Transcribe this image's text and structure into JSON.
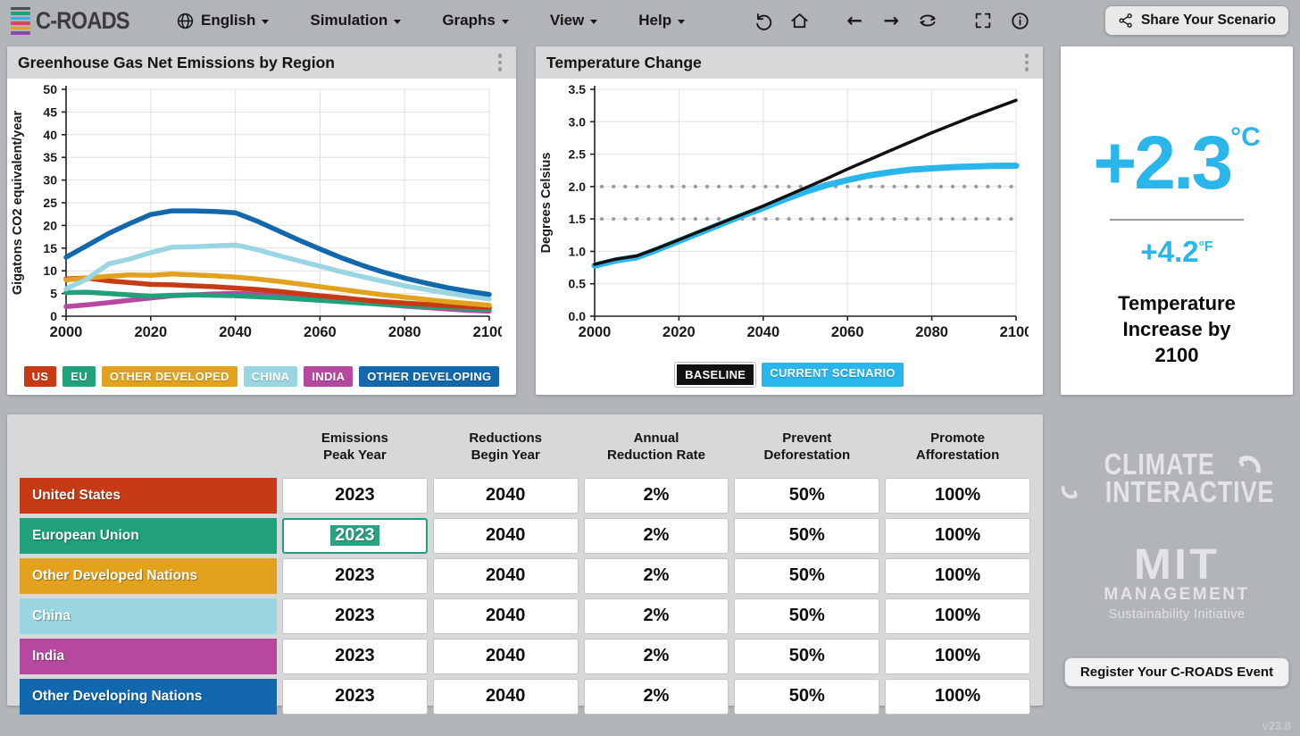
{
  "topbar": {
    "logo_text": "C-ROADS",
    "logo_stripe_colors": [
      "#4d4d4f",
      "#21a07c",
      "#2ab6ea",
      "#d8416f",
      "#e2a21d",
      "#8a4a9e"
    ],
    "menus": [
      {
        "label": "English",
        "icon": "globe-icon"
      },
      {
        "label": "Simulation"
      },
      {
        "label": "Graphs"
      },
      {
        "label": "View"
      },
      {
        "label": "Help"
      }
    ],
    "nav_icon_names": [
      "undo-icon",
      "home-icon",
      "back-arrow-icon",
      "forward-arrow-icon",
      "cycle-icon",
      "fullscreen-icon",
      "info-icon"
    ],
    "back_glyph": "←",
    "forward_glyph": "→",
    "share_label": "Share Your Scenario"
  },
  "chart_data": [
    {
      "id": "emissions",
      "type": "line",
      "title": "Greenhouse Gas Net Emissions by Region",
      "ylabel": "Gigatons CO2 equivalent/year",
      "xlabel": "",
      "xlim": [
        2000,
        2100
      ],
      "ylim": [
        0,
        50
      ],
      "xtick": 20,
      "ytick": 5,
      "ydec": 0,
      "grid": true,
      "legend_position": "bottom",
      "x": [
        2000,
        2005,
        2010,
        2015,
        2020,
        2025,
        2030,
        2035,
        2040,
        2045,
        2050,
        2055,
        2060,
        2065,
        2070,
        2075,
        2080,
        2085,
        2090,
        2095,
        2100
      ],
      "series": [
        {
          "name": "INDIA",
          "color": "#b5489f",
          "values": [
            2.1,
            2.5,
            3.0,
            3.5,
            4.0,
            4.5,
            4.7,
            4.9,
            5.0,
            4.9,
            4.6,
            4.2,
            3.8,
            3.4,
            3.0,
            2.6,
            2.2,
            1.9,
            1.6,
            1.3,
            1.1
          ]
        },
        {
          "name": "EU",
          "color": "#21a07c",
          "values": [
            5.2,
            5.3,
            5.0,
            4.7,
            4.4,
            4.6,
            4.7,
            4.6,
            4.5,
            4.3,
            4.1,
            3.8,
            3.5,
            3.2,
            2.9,
            2.6,
            2.3,
            2.1,
            1.9,
            1.7,
            1.5
          ]
        },
        {
          "name": "US",
          "color": "#c63b16",
          "values": [
            8.2,
            8.4,
            7.8,
            7.4,
            7.0,
            6.9,
            6.7,
            6.5,
            6.2,
            5.9,
            5.5,
            5.0,
            4.5,
            4.1,
            3.6,
            3.2,
            2.9,
            2.6,
            2.3,
            2.1,
            1.9
          ]
        },
        {
          "name": "OTHER DEVELOPED",
          "color": "#e2a21d",
          "values": [
            8.0,
            8.4,
            8.8,
            9.1,
            9.0,
            9.3,
            9.1,
            8.9,
            8.6,
            8.2,
            7.7,
            7.1,
            6.5,
            5.9,
            5.3,
            4.7,
            4.2,
            3.7,
            3.2,
            2.8,
            2.4
          ]
        },
        {
          "name": "CHINA",
          "color": "#99d6e1",
          "values": [
            6.0,
            8.2,
            11.5,
            12.6,
            14.0,
            15.2,
            15.3,
            15.5,
            15.7,
            14.7,
            13.4,
            12.2,
            11.0,
            9.8,
            8.7,
            7.7,
            6.7,
            5.9,
            5.1,
            4.4,
            3.8
          ]
        },
        {
          "name": "OTHER DEVELOPING",
          "color": "#1368ad",
          "values": [
            13.0,
            15.6,
            18.2,
            20.4,
            22.4,
            23.2,
            23.2,
            23.1,
            22.8,
            21.0,
            18.9,
            16.8,
            14.8,
            12.9,
            11.2,
            9.7,
            8.4,
            7.3,
            6.3,
            5.5,
            4.8
          ]
        }
      ],
      "legend": [
        {
          "label": "US",
          "color": "#c63b16"
        },
        {
          "label": "EU",
          "color": "#21a07c"
        },
        {
          "label": "OTHER DEVELOPED",
          "color": "#e2a21d"
        },
        {
          "label": "CHINA",
          "color": "#99d6e1"
        },
        {
          "label": "INDIA",
          "color": "#b5489f"
        },
        {
          "label": "OTHER DEVELOPING",
          "color": "#1368ad"
        }
      ]
    },
    {
      "id": "temperature",
      "type": "line",
      "title": "Temperature Change",
      "ylabel": "Degrees Celsius",
      "xlabel": "",
      "xlim": [
        2000,
        2100
      ],
      "ylim": [
        0,
        3.5
      ],
      "xtick": 20,
      "ytick": 0.5,
      "ydec": 1,
      "grid": true,
      "ref_lines": [
        1.5,
        2.0
      ],
      "legend_position": "bottom",
      "x": [
        2000,
        2005,
        2010,
        2015,
        2020,
        2025,
        2030,
        2035,
        2040,
        2045,
        2050,
        2055,
        2060,
        2065,
        2070,
        2075,
        2080,
        2085,
        2090,
        2095,
        2100
      ],
      "series": [
        {
          "name": "CURRENT SCENARIO",
          "color": "#2ab6ea",
          "width": 7,
          "values": [
            0.78,
            0.86,
            0.91,
            1.03,
            1.16,
            1.29,
            1.42,
            1.55,
            1.67,
            1.8,
            1.92,
            2.02,
            2.1,
            2.17,
            2.22,
            2.26,
            2.28,
            2.3,
            2.31,
            2.32,
            2.32
          ]
        },
        {
          "name": "BASELINE",
          "color": "#111111",
          "width": 3.5,
          "values": [
            0.8,
            0.88,
            0.93,
            1.05,
            1.18,
            1.31,
            1.44,
            1.57,
            1.7,
            1.84,
            1.98,
            2.12,
            2.27,
            2.41,
            2.55,
            2.69,
            2.83,
            2.96,
            3.09,
            3.21,
            3.33
          ]
        }
      ],
      "legend": [
        {
          "label": "BASELINE",
          "color": "#111111",
          "bordered": true
        },
        {
          "label": "CURRENT SCENARIO",
          "color": "#2ab6ea"
        }
      ]
    }
  ],
  "summary": {
    "celsius_value": "+2.3",
    "celsius_unit": "°C",
    "fahrenheit_value": "+4.2",
    "fahrenheit_unit": "°F",
    "caption_lines": [
      "Temperature",
      "Increase by",
      "2100"
    ]
  },
  "table": {
    "headers": [
      [
        "Emissions",
        "Peak Year"
      ],
      [
        "Reductions",
        "Begin Year"
      ],
      [
        "Annual",
        "Reduction Rate"
      ],
      [
        "Prevent",
        "Deforestation"
      ],
      [
        "Promote",
        "Afforestation"
      ]
    ],
    "rows": [
      {
        "region": "United States",
        "color": "#c63b16",
        "values": [
          "2023",
          "2040",
          "2%",
          "50%",
          "100%"
        ]
      },
      {
        "region": "European Union",
        "color": "#21a07c",
        "values": [
          "2023",
          "2040",
          "2%",
          "50%",
          "100%"
        ]
      },
      {
        "region": "Other Developed Nations",
        "color": "#e2a21d",
        "values": [
          "2023",
          "2040",
          "2%",
          "50%",
          "100%"
        ]
      },
      {
        "region": "China",
        "color": "#99d6e1",
        "values": [
          "2023",
          "2040",
          "2%",
          "50%",
          "100%"
        ]
      },
      {
        "region": "India",
        "color": "#b5489f",
        "values": [
          "2023",
          "2040",
          "2%",
          "50%",
          "100%"
        ]
      },
      {
        "region": "Other Developing Nations",
        "color": "#1368ad",
        "values": [
          "2023",
          "2040",
          "2%",
          "50%",
          "100%"
        ]
      }
    ],
    "focused_cell": {
      "row": 1,
      "col": 0
    }
  },
  "branding": {
    "climate_interactive_lines": [
      "CLIMATE",
      "INTERACTIVE"
    ],
    "mit_word": "MIT",
    "mit_management": "MANAGEMENT",
    "mit_subtitle": "Sustainability Initiative",
    "register_label": "Register Your C-ROADS Event",
    "version": "v23.8"
  }
}
